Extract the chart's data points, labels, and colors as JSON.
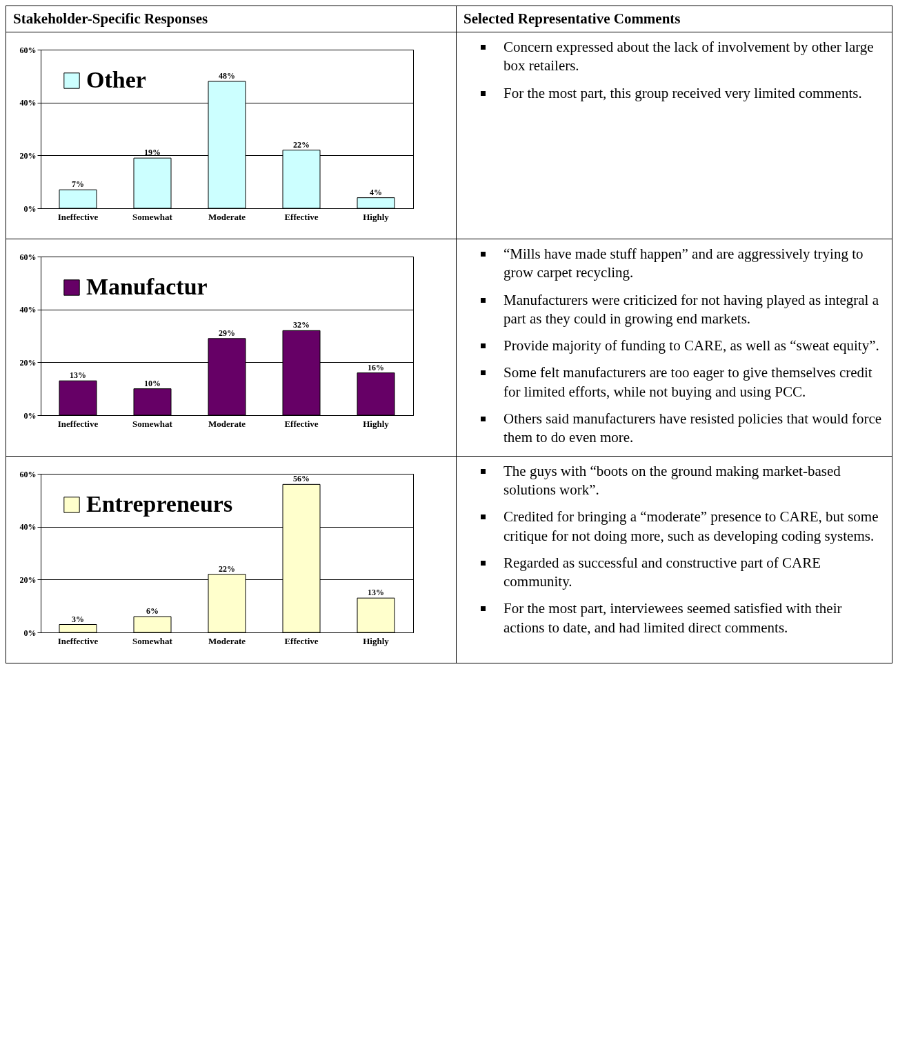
{
  "chart_data": [
    {
      "type": "other",
      "title": "Stakeholder-Specific Responses"
    },
    {
      "type": "other",
      "title": "Selected Representative Comments"
    },
    {
      "type": "bar",
      "categories": [
        "Ineffective",
        "Somewhat",
        "Moderate",
        "Effective",
        "Highly"
      ],
      "series": [
        {
          "name": "Other",
          "color": "#ccffff",
          "values": [
            7,
            19,
            48,
            22,
            4
          ],
          "value_labels": [
            "7%",
            "19%",
            "48%",
            "22%",
            "4%"
          ]
        }
      ],
      "ylim": [
        0,
        60
      ],
      "yticks": [
        {
          "value": 0,
          "label": "0%"
        },
        {
          "value": 20,
          "label": "20%"
        },
        {
          "value": 40,
          "label": "40%"
        },
        {
          "value": 60,
          "label": "60%"
        }
      ],
      "grid": "y",
      "legend": "top left"
    },
    {
      "type": "other",
      "annotations": [
        "Concern expressed about the lack of involvement by other large box retailers.",
        "For the most part, this group received very limited comments."
      ]
    },
    {
      "type": "bar",
      "categories": [
        "Ineffective",
        "Somewhat",
        "Moderate",
        "Effective",
        "Highly"
      ],
      "series": [
        {
          "name": "Manufactur",
          "color": "#660066",
          "values": [
            13,
            10,
            29,
            32,
            16
          ],
          "value_labels": [
            "13%",
            "10%",
            "29%",
            "32%",
            "16%"
          ]
        }
      ],
      "ylim": [
        0,
        60
      ],
      "yticks": [
        {
          "value": 0,
          "label": "0%"
        },
        {
          "value": 20,
          "label": "20%"
        },
        {
          "value": 40,
          "label": "40%"
        },
        {
          "value": 60,
          "label": "60%"
        }
      ],
      "grid": "y",
      "legend": "top left"
    },
    {
      "type": "other",
      "annotations": [
        "“Mills have made stuff happen” and are aggressively trying to grow carpet recycling.",
        "Manufacturers were criticized for not having played as integral a part as they could in growing end markets.",
        "Provide majority of funding to CARE, as well as “sweat equity”.",
        "Some felt manufacturers are too eager to give themselves credit for limited efforts, while not buying and using PCC.",
        "Others said manufacturers have resisted policies that would force them to do even more."
      ]
    },
    {
      "type": "bar",
      "categories": [
        "Ineffective",
        "Somewhat",
        "Moderate",
        "Effective",
        "Highly"
      ],
      "series": [
        {
          "name": "Entrepreneurs",
          "color": "#ffffcc",
          "values": [
            3,
            6,
            22,
            56,
            13
          ],
          "value_labels": [
            "3%",
            "6%",
            "22%",
            "56%",
            "13%"
          ]
        }
      ],
      "ylim": [
        0,
        60
      ],
      "yticks": [
        {
          "value": 0,
          "label": "0%"
        },
        {
          "value": 20,
          "label": "20%"
        },
        {
          "value": 40,
          "label": "40%"
        },
        {
          "value": 60,
          "label": "60%"
        }
      ],
      "grid": "y",
      "legend": "top left"
    },
    {
      "type": "other",
      "annotations": [
        "The guys with “boots on the ground making market-based solutions work”.",
        "Credited for bringing a “moderate” presence to CARE, but some critique for not doing more, such as developing coding systems.",
        "Regarded as successful and constructive part of CARE community.",
        "For the most part, interviewees seemed satisfied with their actions to date, and had limited direct comments."
      ]
    }
  ]
}
